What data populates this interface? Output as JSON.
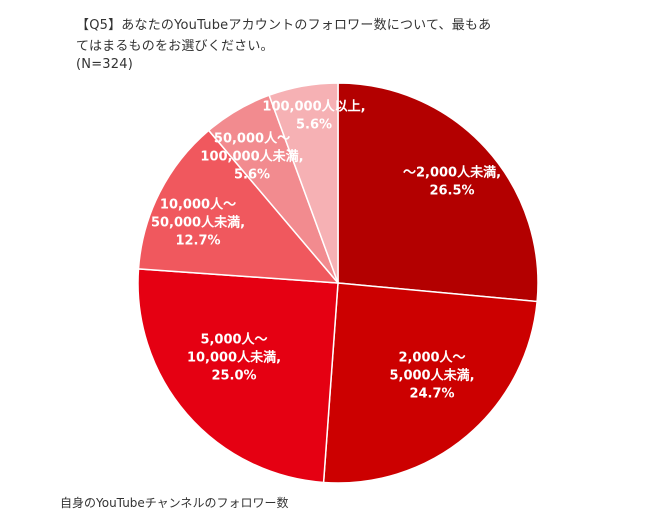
{
  "header": {
    "title_line_1": "【Q5】あなたのYouTubeアカウントのフォロワー数について、最もあ",
    "title_line_2": "てはまるものをお選びください。",
    "sample_size": "(N=324)"
  },
  "caption": "自身のYouTubeチャンネルのフォロワー数",
  "chart_data": {
    "type": "pie",
    "title": "【Q5】あなたのYouTubeアカウントのフォロワー数について、最もあてはまるものをお選びください。",
    "subtitle": "(N=324)",
    "start": "12 o'clock",
    "direction": "clockwise",
    "unit": "%",
    "slices": [
      {
        "category": "～2,000人未満",
        "value": 26.5,
        "label_lines": [
          "～2,000人未満,",
          "26.5%"
        ],
        "color": "#b30000"
      },
      {
        "category": "2,000人～5,000人未満",
        "value": 24.7,
        "label_lines": [
          "2,000人～",
          "5,000人未満,",
          "24.7%"
        ],
        "color": "#cc0000"
      },
      {
        "category": "5,000人～10,000人未満",
        "value": 25.0,
        "label_lines": [
          "5,000人～",
          "10,000人未満,",
          "25.0%"
        ],
        "color": "#e50012"
      },
      {
        "category": "10,000人～50,000人未満",
        "value": 12.7,
        "label_lines": [
          "10,000人～",
          "50,000人未満,",
          "12.7%"
        ],
        "color": "#f0585e"
      },
      {
        "category": "50,000人～100,000人未満",
        "value": 5.6,
        "label_lines": [
          "50,000人～",
          "100,000人未満,",
          "5.6%"
        ],
        "color": "#f28b8f"
      },
      {
        "category": "100,000人以上",
        "value": 5.6,
        "label_lines": [
          "100,000人以上,",
          "5.6%"
        ],
        "color": "#f6b1b4"
      }
    ],
    "legend": "none",
    "data_labels": "inside"
  }
}
